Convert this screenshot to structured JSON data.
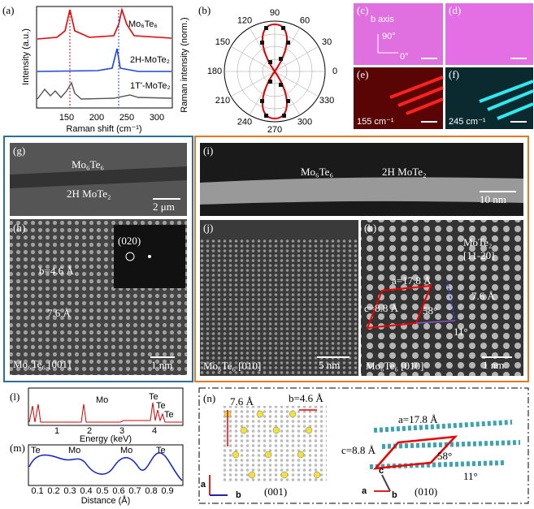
{
  "panel_a": {
    "label": "(a)",
    "y_label": "Intensity (a.u.)",
    "x_label": "Raman shift (cm⁻¹)",
    "x_ticks": [
      "150",
      "200",
      "250",
      "300"
    ],
    "traces": [
      "Mo₆Te₆",
      "2H-MoTe₂",
      "1T'-MoTe₂"
    ]
  },
  "panel_b": {
    "label": "(b)",
    "y_label": "Raman intensity (norm.)",
    "angles": [
      "90",
      "60",
      "30",
      "0",
      "330",
      "300",
      "270",
      "240",
      "210",
      "180",
      "150",
      "120"
    ]
  },
  "panel_c": {
    "label": "(c)",
    "axis_label": "b axis",
    "angle_90": "90°",
    "angle_0": "0°"
  },
  "panel_d": {
    "label": "(d)"
  },
  "panel_e": {
    "label": "(e)",
    "caption": "155 cm⁻¹"
  },
  "panel_f": {
    "label": "(f)",
    "caption": "245 cm⁻¹"
  },
  "panel_g": {
    "label": "(g)",
    "top": "Mo₆Te₆",
    "bottom": "2H MoTe₂",
    "scale": "2 μm"
  },
  "panel_h": {
    "label": "(h)",
    "inset": "(020)",
    "b": "b=4.6 Å",
    "spacing": "7.6 Å",
    "caption": "Mo₆Te₆ [001]",
    "scale": "1 nm"
  },
  "panel_i": {
    "label": "(i)",
    "left": "Mo₆Te₆",
    "right": "2H MoTe₂",
    "scale": "10 nm"
  },
  "panel_j": {
    "label": "(j)",
    "caption": "Mo₆Te₆ [010]",
    "scale": "5 nm"
  },
  "panel_k": {
    "label": "(k)",
    "mote2": "MoTe₂",
    "zone": "[11-20]",
    "a": "a=17.8 Å",
    "c": "c=8.8 Å",
    "angle": "58°",
    "tilt": "11°",
    "spacing": "7.6 Å",
    "caption": "Mo₆Te₆ [010]",
    "scale": "1 nm"
  },
  "panel_l": {
    "label": "(l)",
    "x_label": "Energy (keV)",
    "x_ticks": [
      "1",
      "2",
      "3",
      "4"
    ],
    "peaks": [
      "Mo",
      "Te",
      "Te",
      "Te"
    ]
  },
  "panel_m": {
    "label": "(m)",
    "x_label": "Distance (Å)",
    "x_ticks": [
      "0.1",
      "0.2",
      "0.3",
      "0.4",
      "0.5",
      "0.6",
      "0.7",
      "0.8",
      "0.9"
    ],
    "peaks": [
      "Te",
      "Mo",
      "Mo",
      "Te"
    ]
  },
  "panel_n": {
    "label": "(n)",
    "c_left": "7.6 Å",
    "b_left": "b=4.6 Å",
    "axis_a": "a",
    "axis_b": "b",
    "caption_left": "(001)",
    "a_right": "a=17.8 Å",
    "c_right": "c=8.8 Å",
    "angle": "58°",
    "tilt": "11°",
    "axis_c": "c",
    "caption_right": "(010)"
  }
}
